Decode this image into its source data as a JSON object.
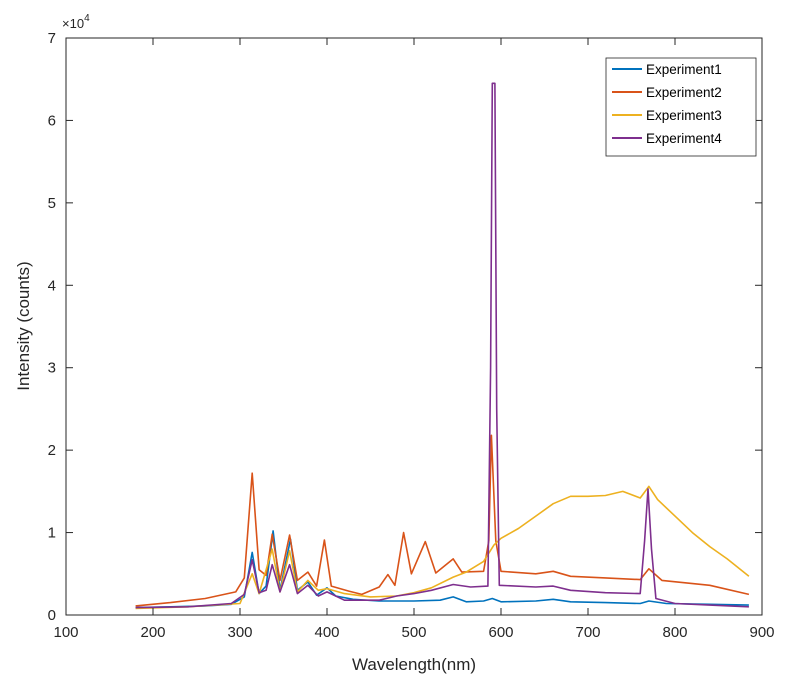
{
  "chart_data": {
    "type": "line",
    "xlabel": "Wavelength(nm)",
    "ylabel": "Intensity (counts)",
    "y_multiplier_label": "×10",
    "y_multiplier_exponent": "4",
    "xlim": [
      100,
      900
    ],
    "ylim": [
      0,
      70000
    ],
    "xticks": [
      100,
      200,
      300,
      400,
      500,
      600,
      700,
      800,
      900
    ],
    "yticks": [
      0,
      10000,
      20000,
      30000,
      40000,
      50000,
      60000,
      70000
    ],
    "ytick_labels": [
      "0",
      "1",
      "2",
      "3",
      "4",
      "5",
      "6",
      "7"
    ],
    "grid": false,
    "legend_position": "top-right",
    "series": [
      {
        "name": "Experiment1",
        "color": "#0072BD",
        "points": [
          [
            180,
            900
          ],
          [
            220,
            1000
          ],
          [
            260,
            1100
          ],
          [
            290,
            1300
          ],
          [
            305,
            2200
          ],
          [
            314,
            7600
          ],
          [
            322,
            2600
          ],
          [
            330,
            3500
          ],
          [
            338,
            10200
          ],
          [
            346,
            3000
          ],
          [
            358,
            9200
          ],
          [
            366,
            3000
          ],
          [
            378,
            4000
          ],
          [
            388,
            2400
          ],
          [
            400,
            3300
          ],
          [
            410,
            2300
          ],
          [
            430,
            1900
          ],
          [
            460,
            1700
          ],
          [
            500,
            1700
          ],
          [
            530,
            1800
          ],
          [
            545,
            2200
          ],
          [
            560,
            1600
          ],
          [
            580,
            1700
          ],
          [
            590,
            2000
          ],
          [
            600,
            1600
          ],
          [
            640,
            1700
          ],
          [
            660,
            1900
          ],
          [
            680,
            1600
          ],
          [
            720,
            1500
          ],
          [
            760,
            1400
          ],
          [
            770,
            1700
          ],
          [
            790,
            1400
          ],
          [
            840,
            1300
          ],
          [
            885,
            1200
          ]
        ]
      },
      {
        "name": "Experiment2",
        "color": "#D95319",
        "points": [
          [
            180,
            1100
          ],
          [
            220,
            1500
          ],
          [
            260,
            2000
          ],
          [
            295,
            2800
          ],
          [
            305,
            4500
          ],
          [
            314,
            17200
          ],
          [
            322,
            5500
          ],
          [
            330,
            4800
          ],
          [
            337,
            9800
          ],
          [
            346,
            4200
          ],
          [
            357,
            9700
          ],
          [
            366,
            4200
          ],
          [
            378,
            5200
          ],
          [
            388,
            3500
          ],
          [
            397,
            9100
          ],
          [
            405,
            3500
          ],
          [
            425,
            2900
          ],
          [
            440,
            2500
          ],
          [
            460,
            3400
          ],
          [
            470,
            4900
          ],
          [
            478,
            3600
          ],
          [
            488,
            10000
          ],
          [
            497,
            5000
          ],
          [
            513,
            8900
          ],
          [
            525,
            5100
          ],
          [
            545,
            6800
          ],
          [
            555,
            5200
          ],
          [
            580,
            5300
          ],
          [
            586,
            9000
          ],
          [
            589,
            21800
          ],
          [
            594,
            9000
          ],
          [
            600,
            5300
          ],
          [
            640,
            5000
          ],
          [
            660,
            5300
          ],
          [
            680,
            4700
          ],
          [
            720,
            4500
          ],
          [
            760,
            4300
          ],
          [
            770,
            5600
          ],
          [
            785,
            4200
          ],
          [
            840,
            3600
          ],
          [
            885,
            2500
          ]
        ]
      },
      {
        "name": "Experiment3",
        "color": "#EDB120",
        "points": [
          [
            180,
            800
          ],
          [
            240,
            1000
          ],
          [
            300,
            1400
          ],
          [
            314,
            5000
          ],
          [
            322,
            2600
          ],
          [
            337,
            8000
          ],
          [
            346,
            2800
          ],
          [
            357,
            7800
          ],
          [
            366,
            2800
          ],
          [
            378,
            4200
          ],
          [
            390,
            3000
          ],
          [
            400,
            3200
          ],
          [
            420,
            2600
          ],
          [
            450,
            2200
          ],
          [
            480,
            2300
          ],
          [
            500,
            2700
          ],
          [
            520,
            3300
          ],
          [
            545,
            4600
          ],
          [
            560,
            5200
          ],
          [
            580,
            6500
          ],
          [
            592,
            8500
          ],
          [
            600,
            9300
          ],
          [
            620,
            10500
          ],
          [
            640,
            12000
          ],
          [
            660,
            13500
          ],
          [
            680,
            14400
          ],
          [
            700,
            14400
          ],
          [
            720,
            14500
          ],
          [
            740,
            15000
          ],
          [
            760,
            14200
          ],
          [
            770,
            15600
          ],
          [
            780,
            14000
          ],
          [
            800,
            12000
          ],
          [
            820,
            10000
          ],
          [
            840,
            8300
          ],
          [
            860,
            6800
          ],
          [
            885,
            4700
          ]
        ]
      },
      {
        "name": "Experiment4",
        "color": "#7E2F8E",
        "points": [
          [
            180,
            900
          ],
          [
            240,
            1000
          ],
          [
            290,
            1400
          ],
          [
            305,
            2500
          ],
          [
            314,
            6700
          ],
          [
            322,
            2700
          ],
          [
            330,
            3000
          ],
          [
            337,
            6100
          ],
          [
            346,
            2800
          ],
          [
            357,
            6100
          ],
          [
            366,
            2600
          ],
          [
            378,
            3600
          ],
          [
            390,
            2300
          ],
          [
            400,
            2800
          ],
          [
            420,
            1800
          ],
          [
            460,
            1800
          ],
          [
            480,
            2300
          ],
          [
            500,
            2600
          ],
          [
            520,
            3000
          ],
          [
            545,
            3700
          ],
          [
            565,
            3400
          ],
          [
            585,
            3500
          ],
          [
            588,
            30000
          ],
          [
            590,
            64500
          ],
          [
            593,
            64500
          ],
          [
            595,
            25000
          ],
          [
            598,
            3600
          ],
          [
            640,
            3400
          ],
          [
            660,
            3500
          ],
          [
            680,
            3000
          ],
          [
            720,
            2700
          ],
          [
            760,
            2600
          ],
          [
            765,
            9000
          ],
          [
            769,
            15300
          ],
          [
            773,
            8000
          ],
          [
            778,
            2000
          ],
          [
            800,
            1400
          ],
          [
            840,
            1200
          ],
          [
            885,
            1000
          ]
        ]
      }
    ]
  }
}
